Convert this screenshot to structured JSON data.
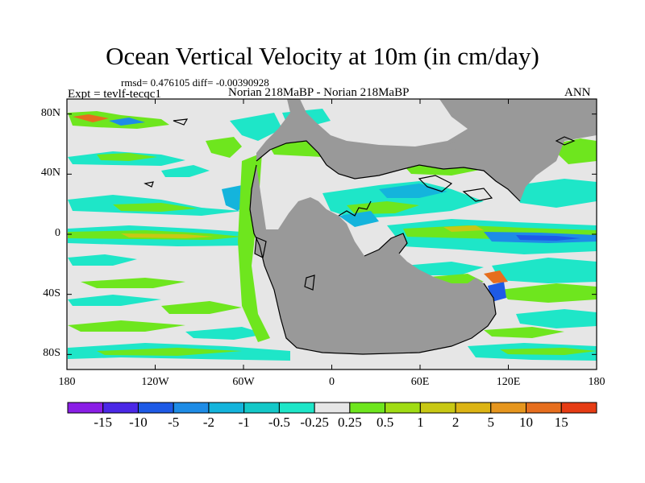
{
  "title": "Ocean Vertical Velocity at 10m (in cm/day)",
  "stats": "rmsd= 0.476105 diff= -0.00390928",
  "experiment": "Expt = tevlf-tecqc1",
  "experiment_name": "Norian 218MaBP - Norian 218MaBP",
  "season": "ANN",
  "map": {
    "projection": "cylindrical equidistant",
    "lon_range": [
      -180,
      180
    ],
    "lat_range": [
      -90,
      90
    ],
    "land_color": "#999999",
    "ocean_background": "#e6e6e6",
    "y_ticks": [
      {
        "lat": 80,
        "label": "80N"
      },
      {
        "lat": 40,
        "label": "40N"
      },
      {
        "lat": 0,
        "label": "0"
      },
      {
        "lat": -40,
        "label": "40S"
      },
      {
        "lat": -80,
        "label": "80S"
      }
    ],
    "x_ticks": [
      {
        "lon": -180,
        "label": "180"
      },
      {
        "lon": -120,
        "label": "120W"
      },
      {
        "lon": -60,
        "label": "60W"
      },
      {
        "lon": 0,
        "label": "0"
      },
      {
        "lon": 60,
        "label": "60E"
      },
      {
        "lon": 120,
        "label": "120E"
      },
      {
        "lon": 180,
        "label": "180"
      }
    ]
  },
  "colorbar": {
    "colors": [
      "#8a1ee6",
      "#4b28e6",
      "#1e5ae6",
      "#1e8ce6",
      "#14b4dc",
      "#14c8c8",
      "#1ee6c8",
      "#e6e6e6",
      "#6ee61e",
      "#a0dc14",
      "#c8c814",
      "#dcb414",
      "#e6961e",
      "#e66e1e",
      "#e63c14"
    ],
    "labels": [
      "-15",
      "-10",
      "-5",
      "-2",
      "-1",
      "-0.5",
      "-0.25",
      "0.25",
      "0.5",
      "1",
      "2",
      "5",
      "10",
      "15"
    ]
  }
}
